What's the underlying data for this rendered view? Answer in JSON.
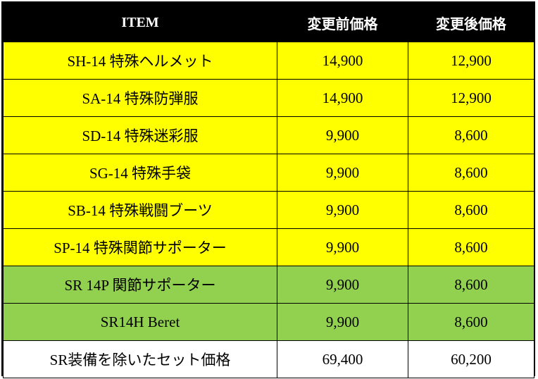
{
  "table": {
    "headers": [
      "ITEM",
      "変更前価格",
      "変更後価格"
    ],
    "rows": [
      {
        "item": "SH-14 特殊ヘルメット",
        "before": "14,900",
        "after": "12,900",
        "color": "#ffff00"
      },
      {
        "item": "SA-14 特殊防弾服",
        "before": "14,900",
        "after": "12,900",
        "color": "#ffff00"
      },
      {
        "item": "SD-14 特殊迷彩服",
        "before": "9,900",
        "after": "8,600",
        "color": "#ffff00"
      },
      {
        "item": "SG-14 特殊手袋",
        "before": "9,900",
        "after": "8,600",
        "color": "#ffff00"
      },
      {
        "item": "SB-14 特殊戦闘ブーツ",
        "before": "9,900",
        "after": "8,600",
        "color": "#ffff00"
      },
      {
        "item": "SP-14 特殊関節サポーター",
        "before": "9,900",
        "after": "8,600",
        "color": "#ffff00"
      },
      {
        "item": "SR 14P 関節サポーター",
        "before": "9,900",
        "after": "8,600",
        "color": "#92d050"
      },
      {
        "item": "SR14H Beret",
        "before": "9,900",
        "after": "8,600",
        "color": "#92d050"
      },
      {
        "item": "SR装備を除いたセット価格",
        "before": "69,400",
        "after": "60,200",
        "color": "#ffffff"
      }
    ]
  },
  "colors": {
    "header_bg": "#000000",
    "header_text": "#ffffff",
    "yellow": "#ffff00",
    "green": "#92d050",
    "white": "#ffffff"
  }
}
